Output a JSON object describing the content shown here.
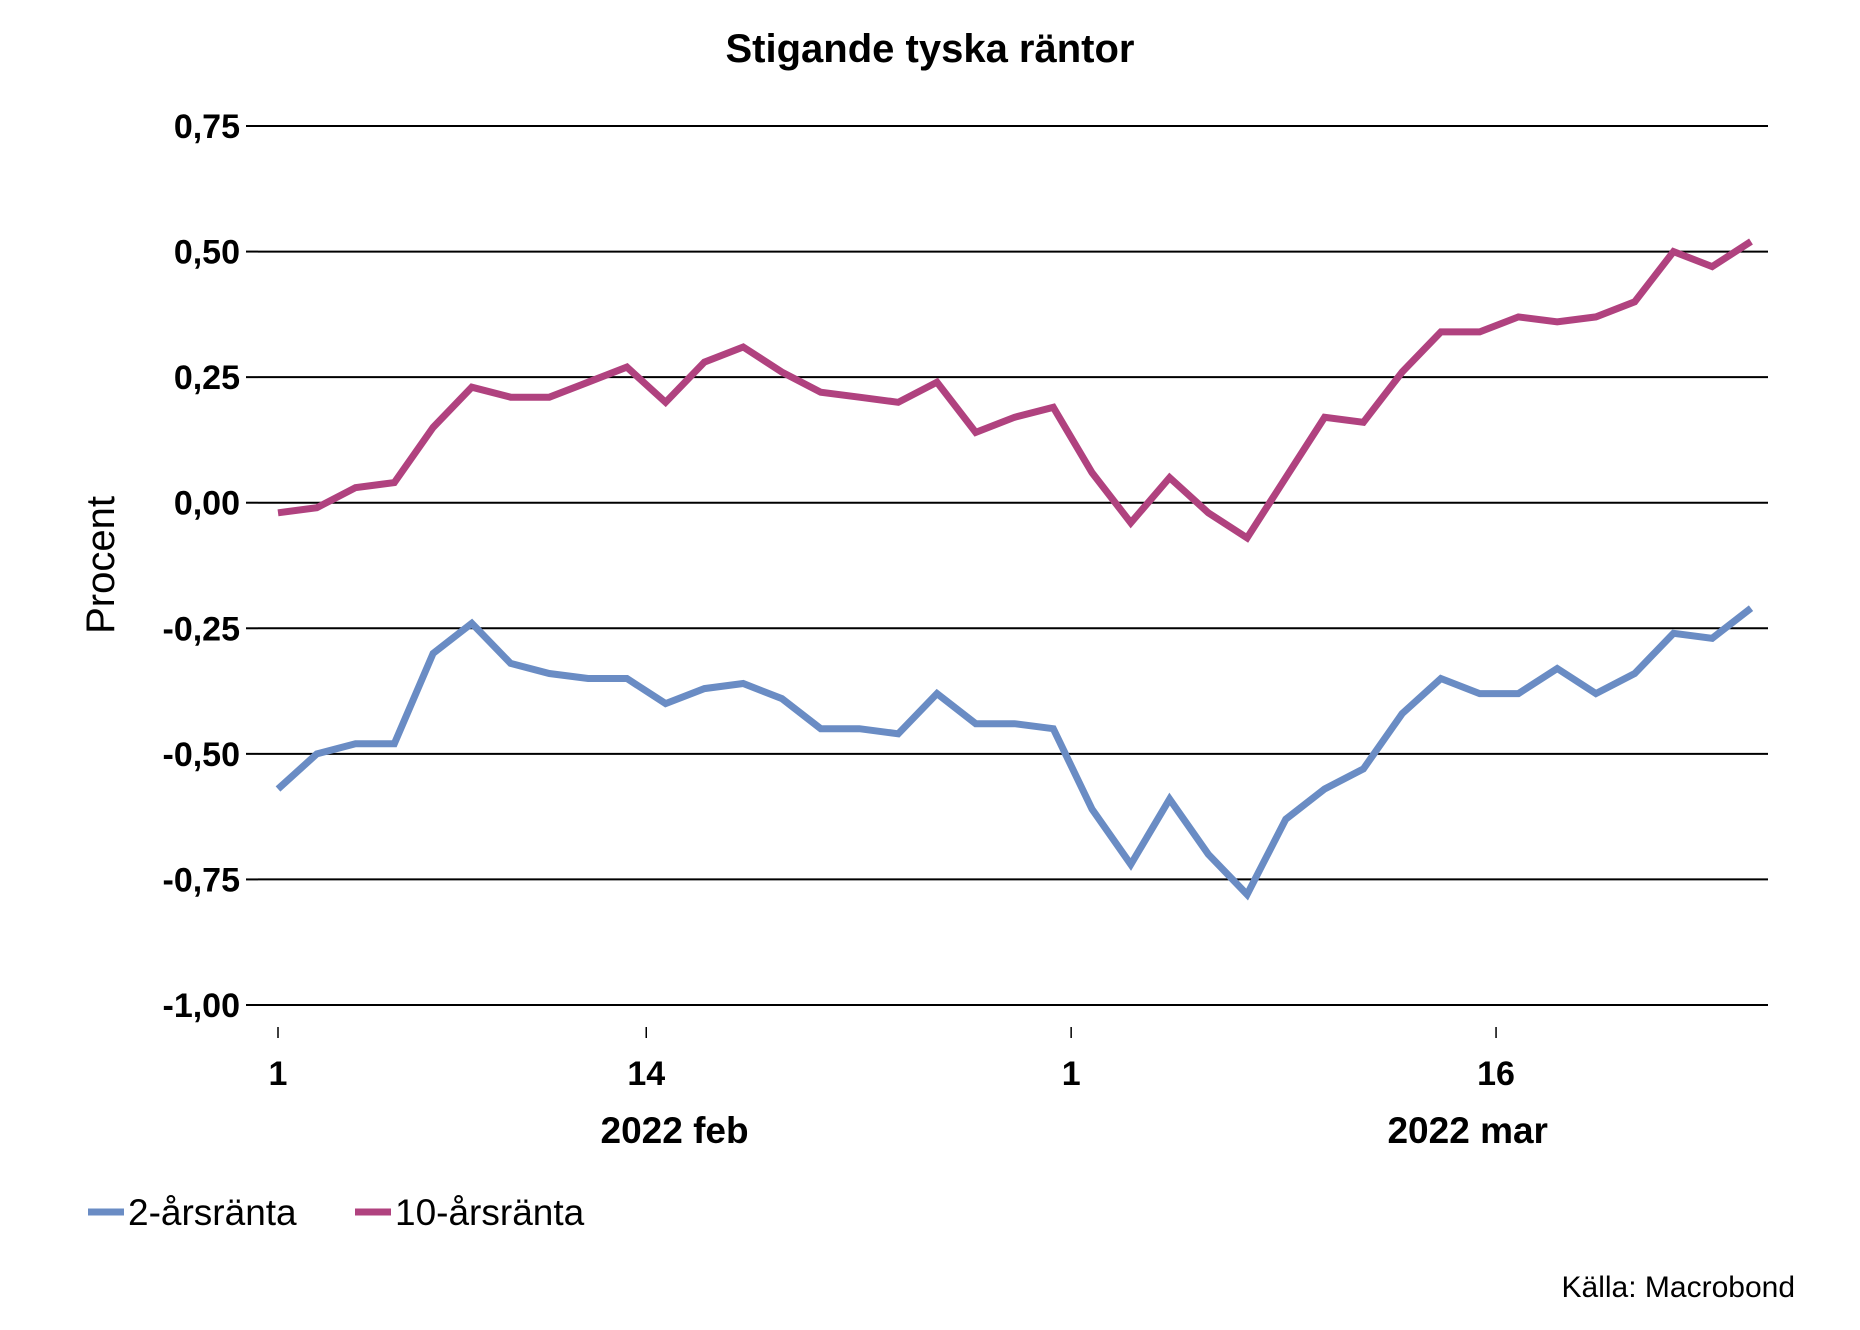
{
  "chart_data": {
    "type": "line",
    "title": "Stigande tyska räntor",
    "ylabel": "Procent",
    "xlabel": "",
    "ylim": [
      -1.0,
      0.75
    ],
    "yticks": [
      0.75,
      0.5,
      0.25,
      0.0,
      -0.25,
      -0.5,
      -0.75,
      -1.0
    ],
    "ytick_labels": [
      "0,75",
      "0,50",
      "0,25",
      "0,00",
      "-0,25",
      "-0,50",
      "-0,75",
      "-1,00"
    ],
    "xlim": [
      "2022-02-01",
      "2022-03-25"
    ],
    "x_ticks": [
      {
        "date": "2022-02-01",
        "label": "1"
      },
      {
        "date": "2022-02-14",
        "label": "14"
      },
      {
        "date": "2022-03-01",
        "label": "1"
      },
      {
        "date": "2022-03-16",
        "label": "16"
      }
    ],
    "month_labels": [
      {
        "date": "2022-02-15",
        "label": "2022 feb"
      },
      {
        "date": "2022-03-15",
        "label": "2022 mar"
      }
    ],
    "grid": true,
    "legend_position": "bottom-left",
    "x": [
      "2022-02-01",
      "2022-02-02",
      "2022-02-03",
      "2022-02-04",
      "2022-02-07",
      "2022-02-08",
      "2022-02-09",
      "2022-02-10",
      "2022-02-11",
      "2022-02-14",
      "2022-02-15",
      "2022-02-16",
      "2022-02-17",
      "2022-02-18",
      "2022-02-21",
      "2022-02-22",
      "2022-02-23",
      "2022-02-24",
      "2022-02-25",
      "2022-02-28",
      "2022-03-01",
      "2022-03-02",
      "2022-03-03",
      "2022-03-04",
      "2022-03-07",
      "2022-03-08",
      "2022-03-09",
      "2022-03-10",
      "2022-03-11",
      "2022-03-14",
      "2022-03-15",
      "2022-03-16",
      "2022-03-17",
      "2022-03-18",
      "2022-03-21",
      "2022-03-22",
      "2022-03-23",
      "2022-03-24",
      "2022-03-25"
    ],
    "series": [
      {
        "name": "2-årsränta",
        "color": "#6a8cc4",
        "values": [
          -0.57,
          -0.5,
          -0.48,
          -0.48,
          -0.3,
          -0.24,
          -0.32,
          -0.34,
          -0.35,
          -0.35,
          -0.4,
          -0.37,
          -0.36,
          -0.39,
          -0.45,
          -0.45,
          -0.46,
          -0.38,
          -0.44,
          -0.44,
          -0.45,
          -0.61,
          -0.72,
          -0.59,
          -0.7,
          -0.78,
          -0.63,
          -0.57,
          -0.53,
          -0.42,
          -0.35,
          -0.38,
          -0.38,
          -0.33,
          -0.38,
          -0.34,
          -0.26,
          -0.27,
          -0.21
        ]
      },
      {
        "name": "10-årsränta",
        "color": "#b0427f",
        "values": [
          -0.02,
          -0.01,
          0.03,
          0.04,
          0.15,
          0.23,
          0.21,
          0.21,
          0.24,
          0.27,
          0.2,
          0.28,
          0.31,
          0.26,
          0.22,
          0.21,
          0.2,
          0.24,
          0.14,
          0.17,
          0.19,
          0.06,
          -0.04,
          0.05,
          -0.02,
          -0.07,
          0.05,
          0.17,
          0.16,
          0.26,
          0.34,
          0.34,
          0.37,
          0.36,
          0.37,
          0.4,
          0.5,
          0.47,
          0.52
        ]
      }
    ]
  },
  "source": "Källa: Macrobond"
}
